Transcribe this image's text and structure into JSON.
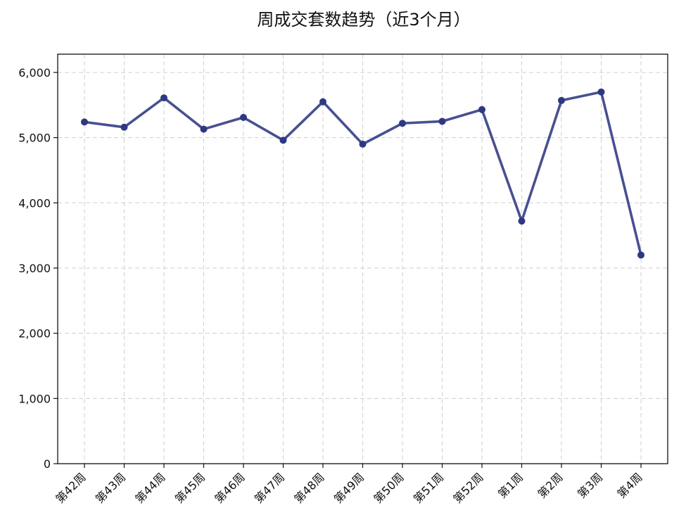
{
  "chart_data": {
    "type": "line",
    "title": "周成交套数趋势（近3个月）",
    "xlabel": "",
    "ylabel": "",
    "categories": [
      "第42周",
      "第43周",
      "第44周",
      "第45周",
      "第46周",
      "第47周",
      "第48周",
      "第49周",
      "第50周",
      "第51周",
      "第52周",
      "第1周",
      "第2周",
      "第3周",
      "第4周"
    ],
    "series": [
      {
        "values": [
          5240,
          5160,
          5610,
          5130,
          5310,
          4960,
          5550,
          4900,
          5220,
          5250,
          5430,
          3720,
          5570,
          5700,
          3200
        ],
        "color": "#2e3882"
      }
    ],
    "ylim": [
      0,
      6280
    ],
    "yticks": [
      0,
      1000,
      2000,
      3000,
      4000,
      5000,
      6000
    ],
    "ytick_labels": [
      "0",
      "1,000",
      "2,000",
      "3,000",
      "4,000",
      "5,000",
      "6,000"
    ],
    "grid": true,
    "grid_style": "dashed",
    "legend": "none",
    "marker": "circle"
  }
}
